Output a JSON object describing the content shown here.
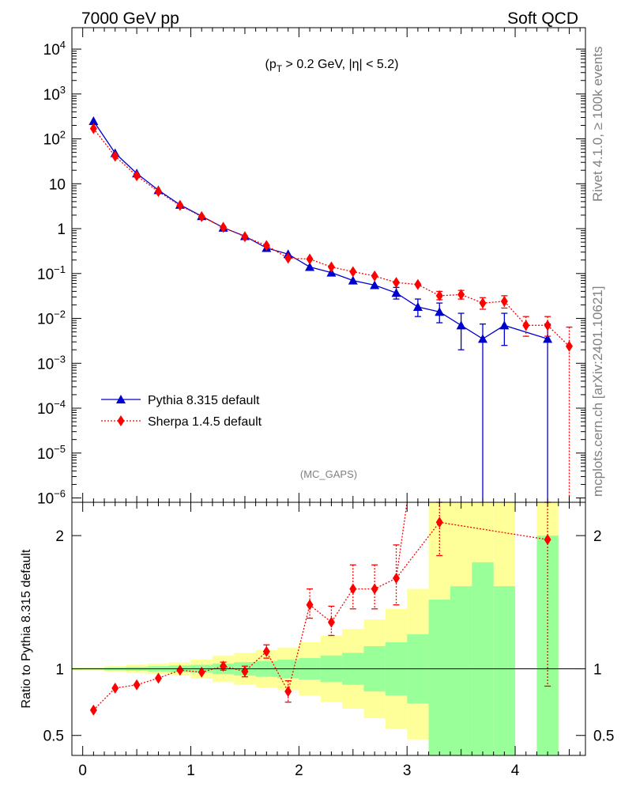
{
  "header": {
    "left_label": "7000 GeV pp",
    "right_label": "Soft QCD"
  },
  "side_labels": {
    "rivet": "Rivet 4.1.0, ≥ 100k events",
    "mcplots": "mcplots.cern.ch [arXiv:2401.10621]"
  },
  "chart_data": [
    {
      "type": "line",
      "panel": "main",
      "annotation": "(p_T > 0.2 GeV, |η| < 5.2)",
      "watermark": "(MC_GAPS)",
      "xlabel": "",
      "ylabel": "",
      "xlim": [
        -0.1,
        4.65
      ],
      "ylim": [
        8e-07,
        30000
      ],
      "yscale": "log",
      "yticks": [
        {
          "value": 1e-06,
          "label": "10",
          "exp": "−6"
        },
        {
          "value": 1e-05,
          "label": "10",
          "exp": "−5"
        },
        {
          "value": 0.0001,
          "label": "10",
          "exp": "−4"
        },
        {
          "value": 0.001,
          "label": "10",
          "exp": "−3"
        },
        {
          "value": 0.01,
          "label": "10",
          "exp": "−2"
        },
        {
          "value": 0.1,
          "label": "10",
          "exp": "−1"
        },
        {
          "value": 1,
          "label": "1",
          "exp": ""
        },
        {
          "value": 10,
          "label": "10",
          "exp": ""
        },
        {
          "value": 100,
          "label": "10",
          "exp": "2"
        },
        {
          "value": 1000,
          "label": "10",
          "exp": "3"
        },
        {
          "value": 10000,
          "label": "10",
          "exp": "4"
        }
      ],
      "legend_position": "bottom-left",
      "series": [
        {
          "name": "Pythia 8.315 default",
          "color": "#0000cc",
          "marker": "triangle",
          "line": "solid",
          "x": [
            0.1,
            0.3,
            0.5,
            0.7,
            0.9,
            1.1,
            1.3,
            1.5,
            1.7,
            1.9,
            2.1,
            2.3,
            2.5,
            2.7,
            2.9,
            3.1,
            3.3,
            3.5,
            3.7,
            3.9,
            4.3
          ],
          "y": [
            250,
            48,
            17,
            7.2,
            3.4,
            1.9,
            1.05,
            0.68,
            0.37,
            0.27,
            0.14,
            0.105,
            0.07,
            0.055,
            0.037,
            0.018,
            0.014,
            0.007,
            0.0035,
            0.007,
            0.0035
          ],
          "err_lo": [
            null,
            null,
            null,
            null,
            null,
            null,
            null,
            null,
            null,
            null,
            null,
            null,
            null,
            null,
            0.01,
            0.007,
            0.006,
            0.005,
            0.0035,
            0.0045,
            0.0035
          ],
          "err_hi": [
            null,
            null,
            null,
            null,
            null,
            null,
            null,
            null,
            null,
            null,
            null,
            null,
            null,
            null,
            0.012,
            0.009,
            0.008,
            0.006,
            0.004,
            0.006,
            0.004
          ]
        },
        {
          "name": "Sherpa 1.4.5 default",
          "color": "#ff0000",
          "marker": "diamond",
          "line": "dotted",
          "x": [
            0.1,
            0.3,
            0.5,
            0.7,
            0.9,
            1.1,
            1.3,
            1.5,
            1.7,
            1.9,
            2.1,
            2.3,
            2.5,
            2.7,
            2.9,
            3.1,
            3.3,
            3.5,
            3.7,
            3.9,
            4.1,
            4.3,
            4.5
          ],
          "y": [
            170,
            41,
            15,
            6.7,
            3.3,
            1.85,
            1.07,
            0.66,
            0.42,
            0.22,
            0.21,
            0.14,
            0.11,
            0.088,
            0.063,
            0.057,
            0.032,
            0.034,
            0.022,
            0.024,
            0.007,
            0.007,
            0.0024
          ],
          "err_lo": [
            null,
            null,
            null,
            null,
            null,
            null,
            null,
            null,
            null,
            null,
            null,
            null,
            null,
            null,
            null,
            null,
            0.006,
            0.007,
            0.006,
            0.007,
            0.003,
            0.003,
            0.0024
          ],
          "err_hi": [
            null,
            null,
            null,
            null,
            null,
            null,
            null,
            null,
            null,
            null,
            null,
            null,
            null,
            null,
            null,
            null,
            0.008,
            0.008,
            0.007,
            0.008,
            0.004,
            0.004,
            0.004
          ]
        }
      ]
    },
    {
      "type": "line",
      "panel": "ratio",
      "ylabel": "Ratio to Pythia 8.315 default",
      "xlabel": "",
      "xlim": [
        -0.1,
        4.65
      ],
      "ylim": [
        0.35,
        2.25
      ],
      "yticks": [
        0.5,
        1,
        2
      ],
      "ytick_labels": [
        "0.5",
        "1",
        "2"
      ],
      "xticks": [
        0,
        1,
        2,
        3,
        4
      ],
      "xtick_labels": [
        "0",
        "1",
        "2",
        "3",
        "4"
      ],
      "reference_line": 1,
      "bands": {
        "bin_edges": [
          -0.1,
          0.2,
          0.4,
          0.6,
          0.8,
          1.0,
          1.2,
          1.4,
          1.6,
          1.8,
          2.0,
          2.2,
          2.4,
          2.6,
          2.8,
          3.0,
          3.2,
          3.4,
          3.6,
          3.8,
          4.0,
          4.2,
          4.4
        ],
        "green": {
          "color": "#99ff99",
          "lo": [
            0.995,
            0.99,
            0.985,
            0.98,
            0.975,
            0.97,
            0.96,
            0.95,
            0.94,
            0.93,
            0.92,
            0.9,
            0.88,
            0.83,
            0.8,
            0.74,
            0.35,
            0.35,
            0.35,
            0.35,
            null,
            0.35
          ],
          "hi": [
            1.005,
            1.01,
            1.015,
            1.02,
            1.025,
            1.03,
            1.04,
            1.05,
            1.06,
            1.07,
            1.08,
            1.1,
            1.12,
            1.17,
            1.2,
            1.26,
            1.52,
            1.62,
            1.8,
            1.62,
            null,
            2.0
          ]
        },
        "yellow": {
          "color": "#ffff99",
          "lo": [
            0.99,
            0.98,
            0.97,
            0.96,
            0.95,
            0.93,
            0.9,
            0.88,
            0.86,
            0.84,
            0.8,
            0.75,
            0.7,
            0.63,
            0.55,
            0.47,
            0.35,
            0.35,
            0.35,
            0.35,
            null,
            0.35
          ],
          "hi": [
            1.01,
            1.02,
            1.03,
            1.04,
            1.05,
            1.07,
            1.1,
            1.12,
            1.14,
            1.16,
            1.2,
            1.25,
            1.3,
            1.37,
            1.45,
            1.6,
            2.25,
            2.25,
            2.25,
            2.25,
            null,
            2.25
          ]
        }
      },
      "series": [
        {
          "name": "Sherpa 1.4.5 default",
          "color": "#ff0000",
          "marker": "diamond",
          "line": "dotted",
          "x": [
            0.1,
            0.3,
            0.5,
            0.7,
            0.9,
            1.1,
            1.3,
            1.5,
            1.7,
            1.9,
            2.1,
            2.3,
            2.5,
            2.7,
            2.9,
            3.3,
            4.3
          ],
          "y": [
            0.69,
            0.855,
            0.88,
            0.93,
            0.99,
            0.975,
            1.02,
            0.98,
            1.13,
            0.83,
            1.48,
            1.35,
            1.6,
            1.6,
            1.68,
            2.1,
            1.97
          ],
          "err_lo": [
            null,
            null,
            null,
            null,
            null,
            null,
            0.03,
            0.04,
            0.05,
            0.08,
            0.1,
            0.1,
            0.15,
            0.15,
            0.2,
            0.25,
            1.1
          ],
          "err_hi": [
            null,
            null,
            null,
            null,
            null,
            null,
            0.03,
            0.04,
            0.05,
            0.08,
            0.12,
            0.12,
            0.18,
            0.18,
            0.25,
            0.3,
            0.3
          ]
        }
      ],
      "offscale_link": {
        "from_x": 2.9,
        "from_y": 1.68,
        "to_x": 3.0,
        "to_y": 2.25
      }
    }
  ]
}
